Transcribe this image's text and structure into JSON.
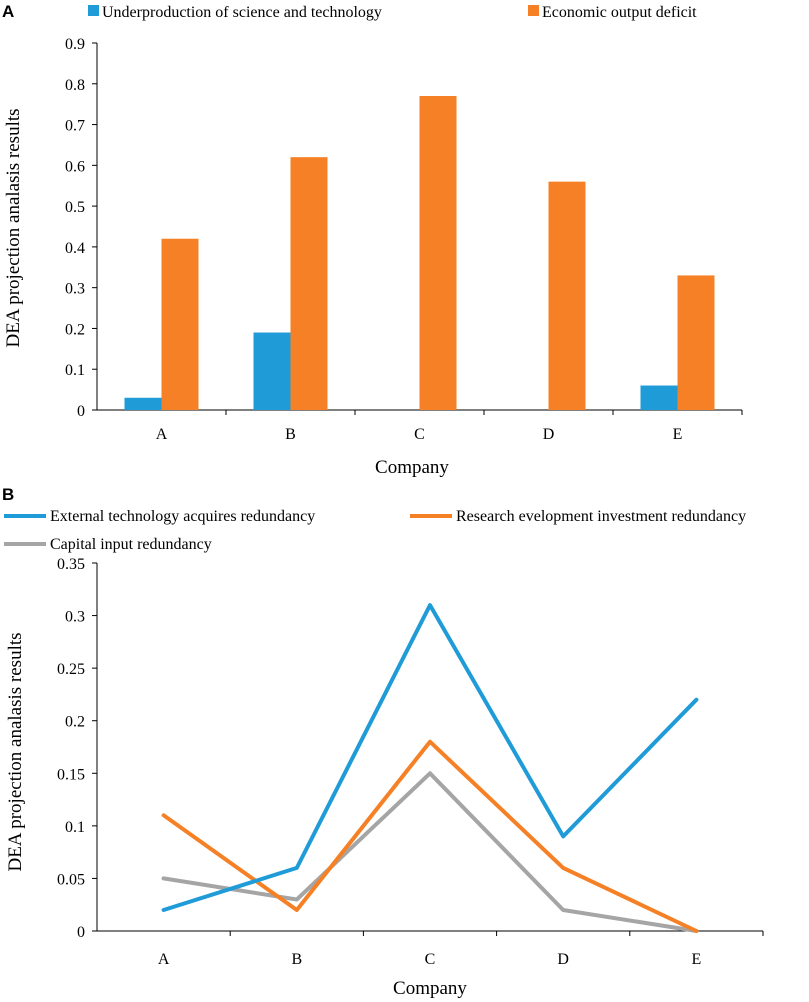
{
  "chart_data": [
    {
      "panel": "A",
      "type": "bar",
      "categories": [
        "A",
        "B",
        "C",
        "D",
        "E"
      ],
      "series": [
        {
          "name": "Underproduction of science and technology",
          "color": "#1f9bd7",
          "values": [
            0.03,
            0.19,
            0,
            0,
            0.06
          ]
        },
        {
          "name": "Economic output deficit",
          "color": "#f58025",
          "values": [
            0.42,
            0.62,
            0.77,
            0.56,
            0.33
          ]
        }
      ],
      "xlabel": "Company",
      "ylabel": "DEA projection analasis results",
      "ylim": [
        0,
        0.9
      ],
      "yticks": [
        "0",
        "0.1",
        "0.2",
        "0.3",
        "0.4",
        "0.5",
        "0.6",
        "0.7",
        "0.8",
        "0.9"
      ],
      "grid": false,
      "legend": "top"
    },
    {
      "panel": "B",
      "type": "line",
      "categories": [
        "A",
        "B",
        "C",
        "D",
        "E"
      ],
      "series": [
        {
          "name": "External technology acquires redundancy",
          "color": "#1f9bd7",
          "values": [
            0.02,
            0.06,
            0.31,
            0.09,
            0.22
          ]
        },
        {
          "name": "Research    evelopment investment redundancy",
          "color": "#f58025",
          "values": [
            0.11,
            0.02,
            0.18,
            0.06,
            0.0
          ]
        },
        {
          "name": "Capital input redundancy",
          "color": "#a5a5a5",
          "values": [
            0.05,
            0.03,
            0.15,
            0.02,
            0.0
          ]
        }
      ],
      "xlabel": "Company",
      "ylabel": "DEA projection analasis results",
      "ylim": [
        0,
        0.35
      ],
      "yticks": [
        "0",
        "0.05",
        "0.1",
        "0.15",
        "0.2",
        "0.25",
        "0.3",
        "0.35"
      ],
      "grid": false,
      "legend": "top"
    }
  ]
}
